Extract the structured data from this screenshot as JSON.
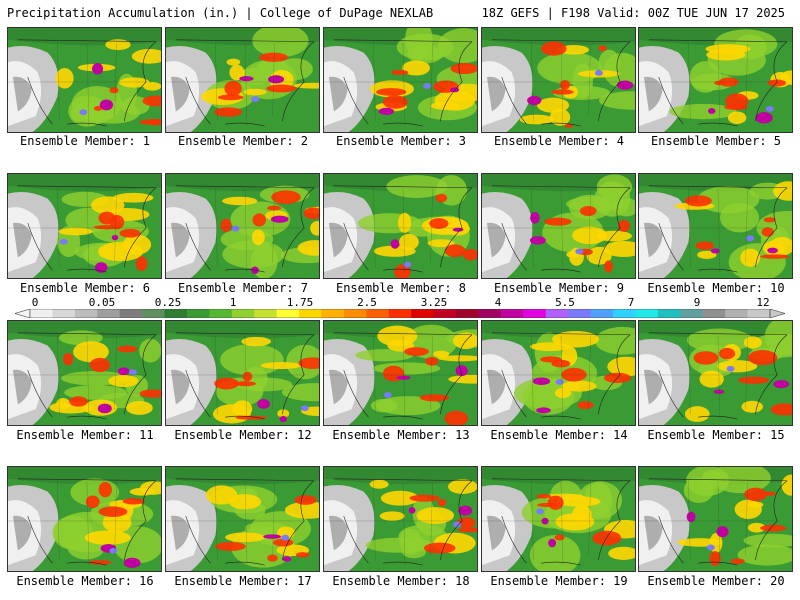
{
  "header": {
    "left": "Precipitation Accumulation (in.) | College of DuPage NEXLAB",
    "right": "18Z GEFS | F198 Valid: 00Z TUE JUN 17 2025"
  },
  "panels": [
    {
      "label": "Ensemble Member: 1"
    },
    {
      "label": "Ensemble Member: 2"
    },
    {
      "label": "Ensemble Member: 3"
    },
    {
      "label": "Ensemble Member: 4"
    },
    {
      "label": "Ensemble Member: 5"
    },
    {
      "label": "Ensemble Member: 6"
    },
    {
      "label": "Ensemble Member: 7"
    },
    {
      "label": "Ensemble Member: 8"
    },
    {
      "label": "Ensemble Member: 9"
    },
    {
      "label": "Ensemble Member: 10"
    },
    {
      "label": "Ensemble Member: 11"
    },
    {
      "label": "Ensemble Member: 12"
    },
    {
      "label": "Ensemble Member: 13"
    },
    {
      "label": "Ensemble Member: 14"
    },
    {
      "label": "Ensemble Member: 15"
    },
    {
      "label": "Ensemble Member: 16"
    },
    {
      "label": "Ensemble Member: 17"
    },
    {
      "label": "Ensemble Member: 18"
    },
    {
      "label": "Ensemble Member: 19"
    },
    {
      "label": "Ensemble Member: 20"
    }
  ],
  "colorbar": {
    "ticks": [
      "0",
      "0.05",
      "0.25",
      "1",
      "1.75",
      "2.5",
      "3.25",
      "4",
      "5.5",
      "7",
      "9",
      "12"
    ],
    "colors": [
      "#f0f0f0",
      "#d8d8d8",
      "#bdbdbd",
      "#9e9e9e",
      "#7d7d7d",
      "#5f8f5f",
      "#2e7d32",
      "#3a9a34",
      "#55b830",
      "#8fd12e",
      "#c8e030",
      "#ffff33",
      "#ffd700",
      "#ffb000",
      "#ff8c00",
      "#ff6000",
      "#ff3000",
      "#e00000",
      "#c00020",
      "#a0002a",
      "#a00060",
      "#c000a0",
      "#e000e0",
      "#b060ff",
      "#7a7aff",
      "#50a0ff",
      "#30d0ff",
      "#20e8e8",
      "#20c0c0",
      "#60a0a0",
      "#909090",
      "#b0b0b0",
      "#c8c8c8"
    ]
  }
}
